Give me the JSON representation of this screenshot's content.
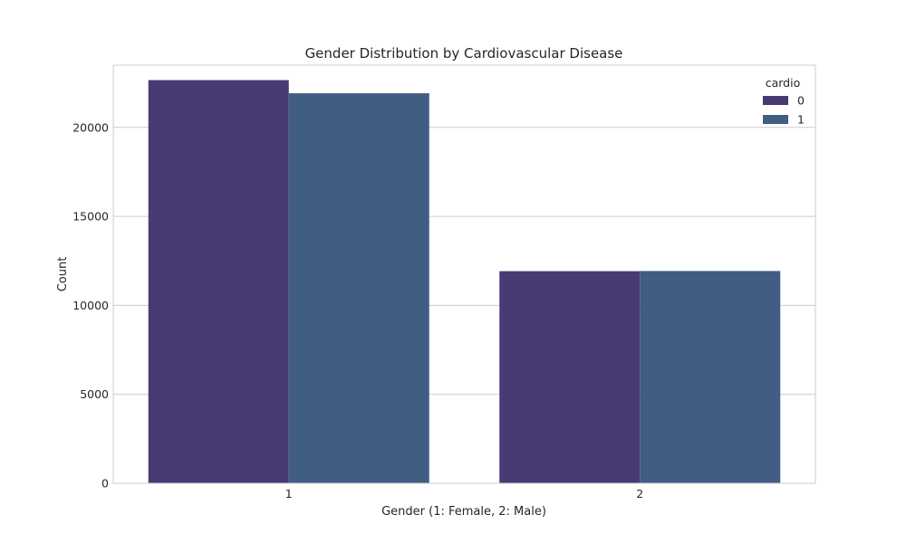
{
  "chart_data": {
    "type": "bar",
    "title": "Gender Distribution by Cardiovascular Disease",
    "xlabel": "Gender (1: Female, 2: Male)",
    "ylabel": "Count",
    "categories": [
      "1",
      "2"
    ],
    "series": [
      {
        "name": "0",
        "values": [
          22660,
          11920
        ],
        "color": "#483a73"
      },
      {
        "name": "1",
        "values": [
          21920,
          11930
        ],
        "color": "#415d83"
      }
    ],
    "ylim": [
      0,
      23500
    ],
    "yticks": [
      0,
      5000,
      10000,
      15000,
      20000
    ],
    "ytick_labels": [
      "0",
      "5000",
      "10000",
      "15000",
      "20000"
    ],
    "grid": "horizontal",
    "legend": {
      "title": "cardio",
      "placement": "top-right"
    },
    "colors": {
      "grid": "#cccccc",
      "frame": "#cccccc"
    }
  }
}
